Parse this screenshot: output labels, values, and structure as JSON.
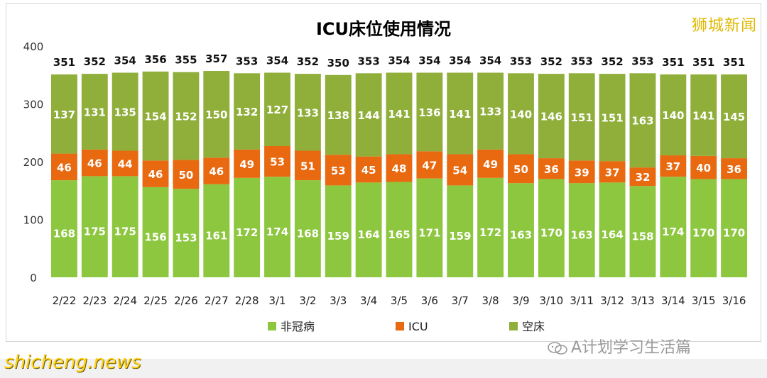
{
  "watermark_top": "狮城新闻",
  "watermark_bottom": "shicheng.news",
  "footer_account": "A计划学习生活篇",
  "colors": {
    "non_covid": "#8dc63f",
    "icu": "#e8690f",
    "empty": "#8fae3a",
    "title": "#000000"
  },
  "chart_data": {
    "type": "bar",
    "stacked": true,
    "title": "ICU床位使用情况",
    "xlabel": "",
    "ylabel": "",
    "ylim": [
      0,
      400
    ],
    "yticks": [
      0,
      100,
      200,
      300,
      400
    ],
    "grid": false,
    "legend_position": "bottom",
    "categories": [
      "2/22",
      "2/23",
      "2/24",
      "2/25",
      "2/26",
      "2/27",
      "2/28",
      "3/1",
      "3/2",
      "3/3",
      "3/4",
      "3/5",
      "3/6",
      "3/7",
      "3/8",
      "3/9",
      "3/10",
      "3/11",
      "3/12",
      "3/13",
      "3/14",
      "3/15",
      "3/16"
    ],
    "series": [
      {
        "name": "非冠病",
        "color": "#8dc63f",
        "values": [
          168,
          175,
          175,
          156,
          153,
          161,
          172,
          174,
          168,
          159,
          164,
          165,
          171,
          159,
          172,
          163,
          170,
          163,
          164,
          158,
          174,
          170,
          170
        ]
      },
      {
        "name": "ICU",
        "color": "#e8690f",
        "values": [
          46,
          46,
          44,
          46,
          50,
          46,
          49,
          53,
          51,
          53,
          45,
          48,
          47,
          54,
          49,
          50,
          36,
          39,
          37,
          32,
          37,
          40,
          36
        ]
      },
      {
        "name": "空床",
        "color": "#8fae3a",
        "values": [
          137,
          131,
          135,
          154,
          152,
          150,
          132,
          127,
          133,
          138,
          144,
          141,
          136,
          141,
          133,
          140,
          146,
          151,
          151,
          163,
          140,
          141,
          145
        ]
      }
    ],
    "totals": [
      351,
      352,
      354,
      356,
      355,
      357,
      353,
      354,
      352,
      350,
      353,
      354,
      354,
      354,
      354,
      353,
      352,
      353,
      352,
      353,
      351,
      351,
      351
    ]
  }
}
